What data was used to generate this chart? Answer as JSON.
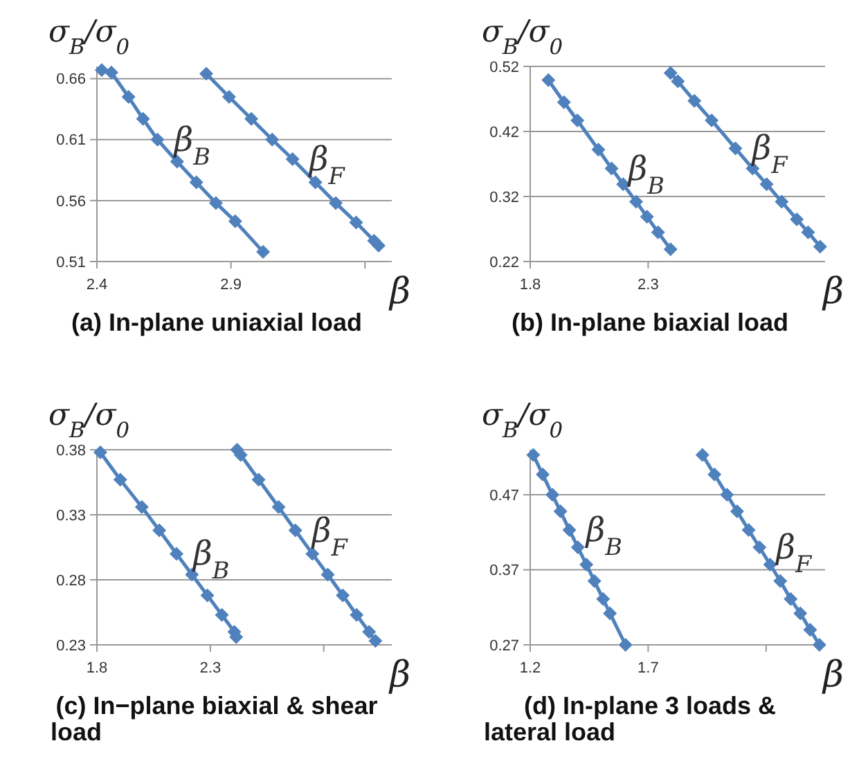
{
  "chart_data": [
    {
      "type": "line",
      "title": "(a) In-plane uniaxial load",
      "xlabel": "β",
      "ylabel": "σ$_{B}$/σ$_{0}$",
      "xlim": [
        2.4,
        3.5
      ],
      "xticks": [
        2.4,
        2.9,
        {
          "value": 3.4,
          "label": null
        }
      ],
      "ylim": [
        0.51,
        0.67
      ],
      "yticks": [
        0.51,
        0.56,
        0.61,
        0.66
      ],
      "grid": "y",
      "marker": "diamond",
      "line_style": "solid",
      "series": [
        {
          "name": "β$_{B}$",
          "color": "#4f81bd",
          "x": [
            2.418,
            2.454,
            2.518,
            2.572,
            2.626,
            2.699,
            2.771,
            2.844,
            2.916,
            3.02
          ],
          "values": [
            0.667,
            0.665,
            0.645,
            0.627,
            0.61,
            0.592,
            0.575,
            0.558,
            0.543,
            0.518
          ]
        },
        {
          "name": "β$_{F}$",
          "color": "#4f81bd",
          "x": [
            2.808,
            2.893,
            2.976,
            3.054,
            3.13,
            3.215,
            3.291,
            3.367,
            3.434,
            3.451
          ],
          "values": [
            0.664,
            0.645,
            0.627,
            0.61,
            0.594,
            0.575,
            0.558,
            0.542,
            0.527,
            0.523
          ]
        }
      ]
    },
    {
      "type": "line",
      "title": "(b) In-plane biaxial load",
      "xlabel": "β",
      "ylabel": "σ$_{B}$/σ$_{0}$",
      "xlim": [
        1.8,
        3.05
      ],
      "xticks": [
        1.8,
        2.3
      ],
      "ylim": [
        0.22,
        0.52
      ],
      "yticks": [
        0.22,
        0.32,
        0.42,
        0.52
      ],
      "grid": "y",
      "marker": "diamond",
      "line_style": "solid",
      "series": [
        {
          "name": "β$_{B}$",
          "color": "#4f81bd",
          "x": [
            1.877,
            1.943,
            2.0,
            2.089,
            2.145,
            2.194,
            2.249,
            2.295,
            2.342,
            2.395
          ],
          "values": [
            0.499,
            0.465,
            0.437,
            0.392,
            0.363,
            0.339,
            0.312,
            0.289,
            0.265,
            0.239
          ]
        },
        {
          "name": "β$_{F}$",
          "color": "#4f81bd",
          "x": [
            2.395,
            2.426,
            2.496,
            2.569,
            2.67,
            2.743,
            2.802,
            2.866,
            2.93,
            2.978,
            3.029
          ],
          "values": [
            0.51,
            0.497,
            0.467,
            0.437,
            0.394,
            0.363,
            0.339,
            0.312,
            0.285,
            0.265,
            0.243
          ]
        }
      ]
    },
    {
      "type": "line",
      "title": "(c) In−plane biaxial & shear load",
      "xlabel": "β",
      "xlim": [
        1.8,
        3.1
      ],
      "xticks": [
        1.8,
        2.3,
        {
          "value": 2.8,
          "label": null
        }
      ],
      "ylabel": "σ$_{B}$/σ$_{0}$",
      "ylim": [
        0.23,
        0.38
      ],
      "yticks": [
        0.23,
        0.28,
        0.33,
        0.38
      ],
      "grid": "y",
      "marker": "diamond",
      "line_style": "solid",
      "series": [
        {
          "name": "β$_{B}$",
          "color": "#4f81bd",
          "x": [
            1.815,
            1.903,
            1.998,
            2.075,
            2.151,
            2.219,
            2.287,
            2.351,
            2.406,
            2.414
          ],
          "values": [
            0.378,
            0.357,
            0.336,
            0.318,
            0.3,
            0.284,
            0.268,
            0.253,
            0.24,
            0.236
          ]
        },
        {
          "name": "β$_{F}$",
          "color": "#4f81bd",
          "x": [
            2.418,
            2.434,
            2.513,
            2.601,
            2.675,
            2.75,
            2.818,
            2.884,
            2.945,
            3.0,
            3.028
          ],
          "values": [
            0.38,
            0.376,
            0.357,
            0.336,
            0.318,
            0.3,
            0.284,
            0.268,
            0.253,
            0.24,
            0.233
          ]
        }
      ]
    },
    {
      "type": "line",
      "title": "(d) In-plane 3 loads & lateral load",
      "xlabel": "β",
      "ylabel": "σ$_{B}$/σ$_{0}$",
      "xlim": [
        1.2,
        2.45
      ],
      "xticks": [
        1.2,
        1.7,
        {
          "value": 2.2,
          "label": null
        }
      ],
      "ylim": [
        0.27,
        0.53
      ],
      "yticks": [
        0.27,
        0.37,
        0.47
      ],
      "grid": "y",
      "marker": "diamond",
      "line_style": "solid",
      "series": [
        {
          "name": "β$_{B}$",
          "color": "#4f81bd",
          "x": [
            1.213,
            1.253,
            1.294,
            1.328,
            1.366,
            1.402,
            1.438,
            1.472,
            1.509,
            1.538,
            1.604
          ],
          "values": [
            0.523,
            0.497,
            0.47,
            0.448,
            0.423,
            0.4,
            0.377,
            0.355,
            0.331,
            0.312,
            0.27
          ]
        },
        {
          "name": "β$_{F}$",
          "color": "#4f81bd",
          "x": [
            1.93,
            1.981,
            2.034,
            2.077,
            2.126,
            2.172,
            2.217,
            2.26,
            2.304,
            2.345,
            2.387,
            2.426
          ],
          "values": [
            0.523,
            0.497,
            0.47,
            0.448,
            0.423,
            0.4,
            0.377,
            0.355,
            0.331,
            0.312,
            0.29,
            0.27
          ]
        }
      ]
    }
  ]
}
